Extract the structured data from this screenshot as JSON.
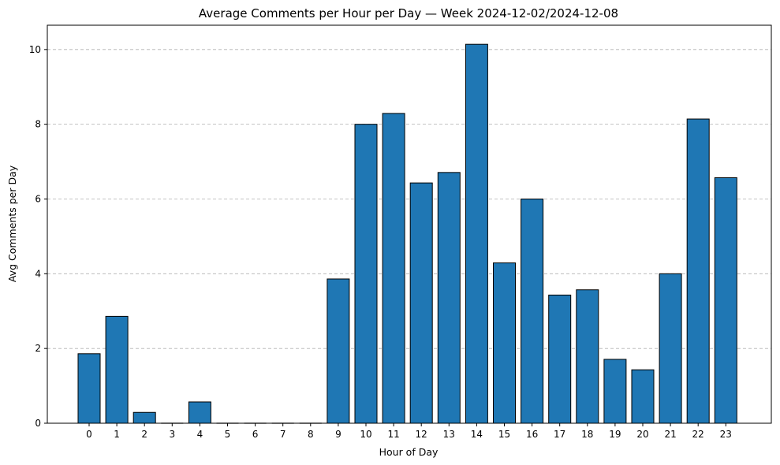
{
  "chart_data": {
    "type": "bar",
    "title": "Average Comments per Hour per Day — Week 2024-12-02/2024-12-08",
    "xlabel": "Hour of Day",
    "ylabel": "Avg Comments per Day",
    "categories": [
      "0",
      "1",
      "2",
      "3",
      "4",
      "5",
      "6",
      "7",
      "8",
      "9",
      "10",
      "11",
      "12",
      "13",
      "14",
      "15",
      "16",
      "17",
      "18",
      "19",
      "20",
      "21",
      "22",
      "23"
    ],
    "values": [
      1.86,
      2.86,
      0.29,
      0,
      0.57,
      0,
      0,
      0,
      0,
      3.86,
      8.0,
      8.29,
      6.43,
      6.71,
      10.14,
      4.29,
      6.0,
      3.43,
      3.57,
      1.71,
      1.43,
      4.0,
      8.14,
      6.57
    ],
    "ylim": [
      0,
      10.65
    ],
    "yticks": [
      0,
      2,
      4,
      6,
      8,
      10
    ],
    "grid": "y-dashed",
    "bar_color": "#1f77b4",
    "edge_color": "#000000",
    "grid_color": "#b0b0b0"
  }
}
